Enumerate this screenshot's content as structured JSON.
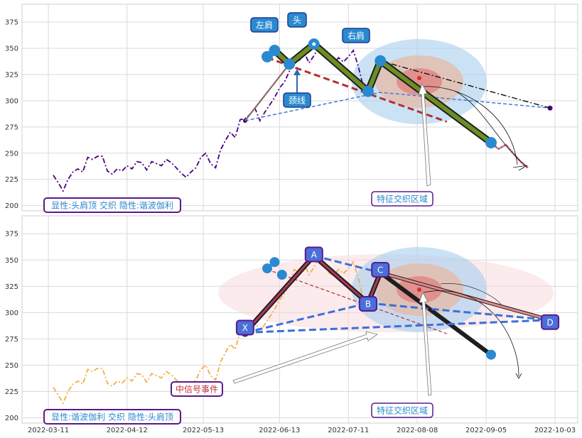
{
  "chart_data": [
    {
      "type": "line",
      "panel": "top",
      "ylim": [
        195,
        392
      ],
      "yticks": [
        200,
        225,
        250,
        275,
        300,
        325,
        350,
        375
      ],
      "grid": true,
      "price": [
        [
          "2022-03-13",
          229
        ],
        [
          "2022-03-15",
          222
        ],
        [
          "2022-03-17",
          214
        ],
        [
          "2022-03-19",
          225
        ],
        [
          "2022-03-21",
          232
        ],
        [
          "2022-03-23",
          235
        ],
        [
          "2022-03-25",
          232
        ],
        [
          "2022-03-27",
          246
        ],
        [
          "2022-03-29",
          244
        ],
        [
          "2022-03-31",
          247
        ],
        [
          "2022-04-02",
          247
        ],
        [
          "2022-04-04",
          233
        ],
        [
          "2022-04-06",
          230
        ],
        [
          "2022-04-08",
          235
        ],
        [
          "2022-04-10",
          233
        ],
        [
          "2022-04-12",
          238
        ],
        [
          "2022-04-14",
          235
        ],
        [
          "2022-04-16",
          242
        ],
        [
          "2022-04-18",
          241
        ],
        [
          "2022-04-20",
          234
        ],
        [
          "2022-04-22",
          242
        ],
        [
          "2022-04-24",
          240
        ],
        [
          "2022-04-26",
          238
        ],
        [
          "2022-04-28",
          244
        ],
        [
          "2022-04-30",
          241
        ],
        [
          "2022-05-02",
          236
        ],
        [
          "2022-05-04",
          231
        ],
        [
          "2022-05-06",
          227
        ],
        [
          "2022-05-08",
          232
        ],
        [
          "2022-05-10",
          236
        ],
        [
          "2022-05-12",
          246
        ],
        [
          "2022-05-14",
          250
        ],
        [
          "2022-05-16",
          240
        ],
        [
          "2022-05-18",
          236
        ],
        [
          "2022-05-20",
          253
        ],
        [
          "2022-05-22",
          262
        ],
        [
          "2022-05-24",
          270
        ],
        [
          "2022-05-26",
          265
        ],
        [
          "2022-05-28",
          282
        ],
        [
          "2022-05-30",
          283
        ],
        [
          "2022-06-01",
          287
        ],
        [
          "2022-06-03",
          293
        ],
        [
          "2022-06-05",
          281
        ],
        [
          "2022-06-07",
          289
        ],
        [
          "2022-06-09",
          296
        ],
        [
          "2022-06-11",
          303
        ],
        [
          "2022-06-13",
          312
        ],
        [
          "2022-06-15",
          318
        ],
        [
          "2022-06-17",
          328
        ],
        [
          "2022-06-19",
          341
        ],
        [
          "2022-06-21",
          338
        ],
        [
          "2022-06-23",
          346
        ],
        [
          "2022-06-25",
          336
        ],
        [
          "2022-06-27",
          343
        ],
        [
          "2022-06-29",
          351
        ],
        [
          "2022-07-01",
          346
        ],
        [
          "2022-07-03",
          338
        ],
        [
          "2022-07-05",
          335
        ],
        [
          "2022-07-07",
          341
        ],
        [
          "2022-07-09",
          337
        ],
        [
          "2022-07-11",
          342
        ],
        [
          "2022-07-13",
          348
        ],
        [
          "2022-07-15",
          333
        ],
        [
          "2022-07-17",
          314
        ],
        [
          "2022-07-19",
          308
        ]
      ],
      "pattern_points": [
        {
          "date": "2022-06-08",
          "value": 342
        },
        {
          "date": "2022-06-11",
          "value": 348
        },
        {
          "date": "2022-06-17",
          "value": 335
        },
        {
          "date": "2022-06-27",
          "value": 354
        },
        {
          "date": "2022-07-19",
          "value": 309
        },
        {
          "date": "2022-07-24",
          "value": 338
        },
        {
          "date": "2022-09-07",
          "value": 260
        }
      ],
      "tail_points": [
        {
          "date": "2022-09-07",
          "value": 260
        },
        {
          "date": "2022-09-10",
          "value": 254
        },
        {
          "date": "2022-09-13",
          "value": 258
        },
        {
          "date": "2022-09-16",
          "value": 250
        },
        {
          "date": "2022-09-19",
          "value": 242
        },
        {
          "date": "2022-09-22",
          "value": 236
        }
      ],
      "neckline": [
        {
          "date": "2022-06-08",
          "value": 341
        },
        {
          "date": "2022-08-20",
          "value": 280
        }
      ],
      "blue_dashed_line": [
        {
          "date": "2022-05-30",
          "value": 281
        },
        {
          "date": "2022-07-24",
          "value": 308
        },
        {
          "date": "2022-10-01",
          "value": 293
        }
      ],
      "dash_dot_line": [
        {
          "date": "2022-07-24",
          "value": 338
        },
        {
          "date": "2022-10-01",
          "value": 293
        }
      ],
      "labels": {
        "left_shoulder": "左肩",
        "head": "头",
        "right_shoulder": "右肩",
        "neckline": "颈线",
        "zone": "特征交织区域"
      },
      "legend": "显性:头肩顶 交织 隐性:谐波伽利"
    },
    {
      "type": "line",
      "panel": "bottom",
      "ylim": [
        195,
        392
      ],
      "yticks": [
        200,
        225,
        250,
        275,
        300,
        325,
        350,
        375
      ],
      "xticks": [
        "2022-03-11",
        "2022-04-12",
        "2022-05-13",
        "2022-06-13",
        "2022-07-11",
        "2022-08-08",
        "2022-09-05",
        "2022-10-03"
      ],
      "grid": true,
      "harmonic_points": [
        {
          "name": "X",
          "date": "2022-05-30",
          "value": 281
        },
        {
          "name": "A",
          "date": "2022-06-27",
          "value": 354
        },
        {
          "name": "B",
          "date": "2022-07-19",
          "value": 309
        },
        {
          "name": "C",
          "date": "2022-07-24",
          "value": 338
        },
        {
          "name": "D",
          "date": "2022-10-01",
          "value": 293
        }
      ],
      "head_shoulder_dots": [
        {
          "date": "2022-06-08",
          "value": 342
        },
        {
          "date": "2022-06-11",
          "value": 348
        },
        {
          "date": "2022-06-14",
          "value": 336
        },
        {
          "date": "2022-09-07",
          "value": 260
        }
      ],
      "labels": {
        "event": "中信号事件",
        "zone": "特征交织区域"
      },
      "legend": "显性:谐波伽利 交织 隐性:头肩顶"
    }
  ],
  "colors": {
    "price_top": "#4b0082",
    "price_bottom": "#f0a830",
    "olive": "#6b8e23",
    "neck": "#b03030",
    "blue_dash": "#3b7dd8",
    "harmonic_fill": "#b0385a",
    "label_bg": "#2a8ad0",
    "label_border": "#1f3a93",
    "legend_border": "#5a1a8c",
    "legend_text": "#2a8ad0",
    "zone_text": "#2a8ad0"
  }
}
